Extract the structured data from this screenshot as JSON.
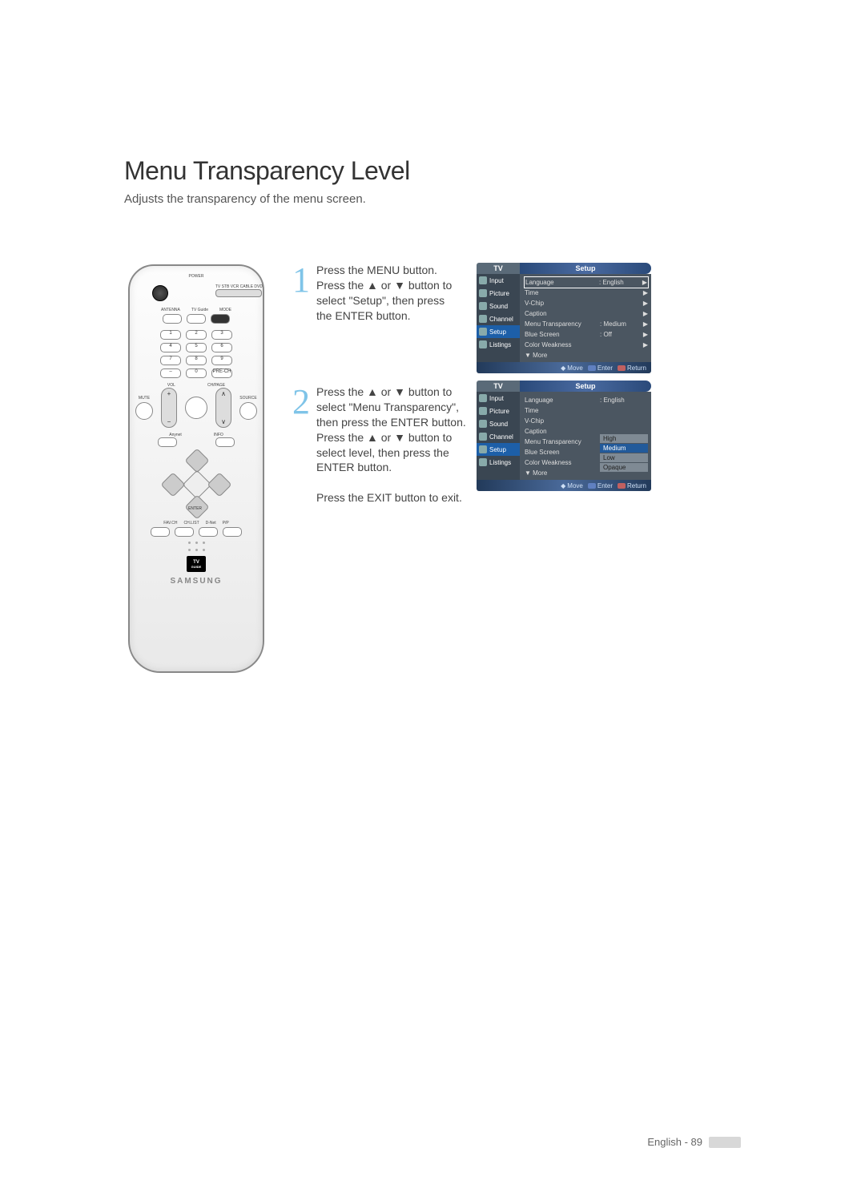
{
  "page": {
    "title": "Menu Transparency Level",
    "subtitle": "Adjusts the transparency of the menu screen.",
    "footer_lang": "English",
    "footer_page": "89"
  },
  "remote": {
    "labels": {
      "power": "POWER",
      "modes": "TV  STB  VCR  CABLE  DVD",
      "antenna": "ANTENNA",
      "tvguide": "TV Guide",
      "mode": "MODE",
      "vol": "VOL",
      "chpage": "CH/PAGE",
      "mute": "MUTE",
      "source": "SOURCE",
      "anynet": "Anynet",
      "info": "INFO",
      "prech": "PRE-CH",
      "minus": "–",
      "enter": "ENTER",
      "favch": "FAV.CH",
      "chlist": "CH.LIST",
      "dnet": "D-Net",
      "pp": "P/P",
      "brand": "SAMSUNG",
      "tvguide_logo_top": "TV",
      "tvguide_logo_bot": "GUIDE"
    },
    "numbers": [
      "1",
      "2",
      "3",
      "4",
      "5",
      "6",
      "7",
      "8",
      "9",
      "0"
    ]
  },
  "steps": {
    "s1": {
      "num": "1",
      "l1": "Press the MENU button.",
      "l2": "Press the ▲ or ▼ button to",
      "l3": "select \"Setup\", then press",
      "l4": "the ENTER button."
    },
    "s2": {
      "num": "2",
      "l1": "Press the ▲ or ▼ button to",
      "l2": "select \"Menu Transparency\",",
      "l3": "then press the ENTER button.",
      "l4": "Press the ▲ or ▼ button to",
      "l5": "select level, then press the",
      "l6": "ENTER button.",
      "l7": "Press the EXIT button to exit."
    }
  },
  "osd": {
    "tv": "TV",
    "title": "Setup",
    "sidebar": [
      "Input",
      "Picture",
      "Sound",
      "Channel",
      "Setup",
      "Listings"
    ],
    "footer": {
      "move": "Move",
      "enter": "Enter",
      "return": "Return"
    },
    "more": "▼ More",
    "menu1": {
      "rows": [
        {
          "k": "Language",
          "v": ": English",
          "sel": true
        },
        {
          "k": "Time",
          "v": ""
        },
        {
          "k": "V-Chip",
          "v": ""
        },
        {
          "k": "Caption",
          "v": ""
        },
        {
          "k": "Menu Transparency",
          "v": ": Medium"
        },
        {
          "k": "Blue Screen",
          "v": ": Off"
        },
        {
          "k": "Color Weakness",
          "v": ""
        }
      ]
    },
    "menu2": {
      "rows": [
        {
          "k": "Language",
          "v": ": English"
        },
        {
          "k": "Time",
          "v": ""
        },
        {
          "k": "V-Chip",
          "v": ""
        },
        {
          "k": "Caption",
          "v": ""
        },
        {
          "k": "Menu Transparency",
          "v": ""
        },
        {
          "k": "Blue Screen",
          "v": ""
        },
        {
          "k": "Color Weakness",
          "v": ""
        }
      ],
      "options": [
        {
          "label": "High",
          "sel": false
        },
        {
          "label": "Medium",
          "sel": true
        },
        {
          "label": "Low",
          "sel": false
        },
        {
          "label": "Opaque",
          "sel": false
        }
      ]
    }
  },
  "style": {
    "accent": "#7fc4e8",
    "osd_bg": "#4b5661",
    "osd_side": "#3a4652",
    "osd_sel": "#1d5fa8"
  }
}
